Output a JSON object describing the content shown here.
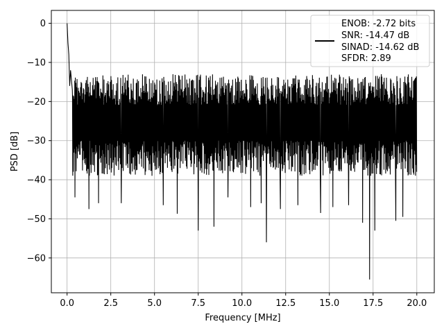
{
  "chart_data": {
    "type": "line",
    "xlabel": "Frequency [MHz]",
    "ylabel": "PSD [dB]",
    "xlim": [
      -0.9,
      21.0
    ],
    "ylim": [
      -68.9,
      3.3
    ],
    "xticks": [
      0.0,
      2.5,
      5.0,
      7.5,
      10.0,
      12.5,
      15.0,
      17.5,
      20.0
    ],
    "xtick_labels": [
      "0.0",
      "2.5",
      "5.0",
      "7.5",
      "10.0",
      "12.5",
      "15.0",
      "17.5",
      "20.0"
    ],
    "yticks": [
      0,
      -10,
      -20,
      -30,
      -40,
      -50,
      -60
    ],
    "ytick_labels": [
      "0",
      "−10",
      "−20",
      "−30",
      "−40",
      "−50",
      "−60"
    ],
    "grid": true,
    "legend_position": "top-right",
    "series": [
      {
        "color": "#000000",
        "x_range": [
          0.0,
          20.0
        ],
        "legend_lines": [
          "ENOB: -2.72 bits",
          "SNR: -14.47 dB",
          "SINAD: -14.62 dB",
          "SFDR: 2.89"
        ],
        "peaks": [
          {
            "x": 0.0,
            "y": 0.0
          },
          {
            "x": 0.05,
            "y": -5.0
          },
          {
            "x": 0.1,
            "y": -8.0
          },
          {
            "x": 0.15,
            "y": -16.0
          },
          {
            "x": 0.2,
            "y": -12.0
          },
          {
            "x": 0.3,
            "y": -17.0
          }
        ],
        "dips": [
          {
            "x": 0.45,
            "y": -44.5
          },
          {
            "x": 1.25,
            "y": -47.5
          },
          {
            "x": 1.8,
            "y": -46.0
          },
          {
            "x": 3.1,
            "y": -46.0
          },
          {
            "x": 5.5,
            "y": -46.5
          },
          {
            "x": 6.3,
            "y": -48.7
          },
          {
            "x": 7.5,
            "y": -53.0
          },
          {
            "x": 8.4,
            "y": -52.0
          },
          {
            "x": 9.2,
            "y": -44.5
          },
          {
            "x": 10.5,
            "y": -47.0
          },
          {
            "x": 11.1,
            "y": -46.0
          },
          {
            "x": 11.4,
            "y": -56.0
          },
          {
            "x": 12.2,
            "y": -47.5
          },
          {
            "x": 13.2,
            "y": -46.5
          },
          {
            "x": 14.5,
            "y": -48.5
          },
          {
            "x": 15.2,
            "y": -47.0
          },
          {
            "x": 16.1,
            "y": -46.5
          },
          {
            "x": 16.9,
            "y": -51.0
          },
          {
            "x": 17.3,
            "y": -65.5
          },
          {
            "x": 17.6,
            "y": -53.0
          },
          {
            "x": 18.8,
            "y": -50.5
          },
          {
            "x": 19.2,
            "y": -49.5
          }
        ],
        "noise_upper": [
          -13.0,
          -21.0
        ],
        "noise_lower": [
          -30.0,
          -39.0
        ]
      }
    ]
  }
}
